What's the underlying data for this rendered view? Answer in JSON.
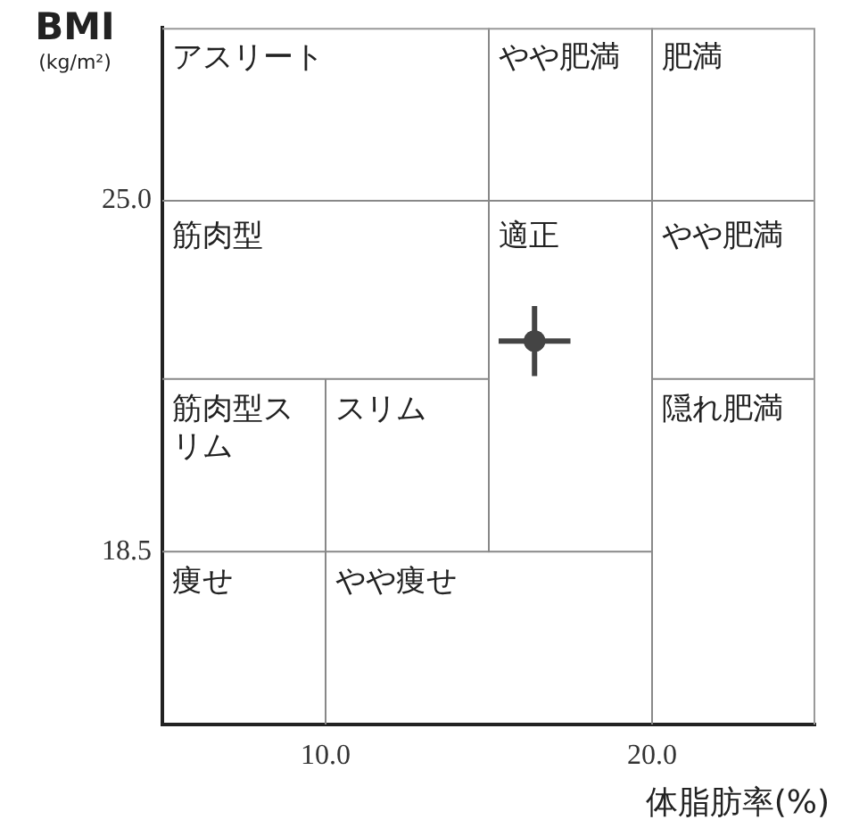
{
  "chart_data": {
    "type": "scatter",
    "xlabel": "体脂肪率(%)",
    "ylabel": "BMI\n(kg/m²)",
    "xlim": [
      5,
      25
    ],
    "ylim": [
      15.3,
      28.2
    ],
    "xticks": [
      {
        "value": 10,
        "label": "10.0"
      },
      {
        "value": 20,
        "label": "20.0"
      }
    ],
    "yticks": [
      {
        "value": 18.5,
        "label": "18.5"
      },
      {
        "value": 25,
        "label": "25.0"
      }
    ],
    "line_style": "solid",
    "series": [
      {
        "type": "line",
        "color": "#888888",
        "x": [
          10,
          10
        ],
        "values": [
          15.3,
          21.7
        ]
      },
      {
        "type": "line",
        "color": "#888888",
        "x": [
          15,
          15
        ],
        "values": [
          28.2,
          18.5
        ]
      },
      {
        "type": "line",
        "color": "#888888",
        "x": [
          20,
          20
        ],
        "values": [
          28.2,
          15.3
        ]
      },
      {
        "type": "line",
        "color": "#888888",
        "x": [
          5,
          25
        ],
        "values": [
          25,
          25
        ]
      },
      {
        "type": "line",
        "color": "#888888",
        "x": [
          5,
          15
        ],
        "values": [
          21.7,
          21.7
        ]
      },
      {
        "type": "line",
        "color": "#888888",
        "x": [
          20,
          25
        ],
        "values": [
          21.7,
          21.7
        ]
      },
      {
        "type": "line",
        "color": "#888888",
        "x": [
          5,
          20
        ],
        "values": [
          18.5,
          18.5
        ]
      },
      {
        "type": "scatter",
        "color": "#444444",
        "marker": "circle",
        "x": [
          16.4
        ],
        "values": [
          22.4
        ],
        "errors": [
          0.65
        ],
        "xerrors": [
          1.1
        ]
      }
    ],
    "annotations": [
      "アスリート",
      "やや肥満",
      "肥満",
      "筋肉型",
      "適正",
      "やや肥満",
      "筋肉型スリム",
      "スリム",
      "隠れ肥満",
      "痩せ",
      "やや痩せ"
    ]
  }
}
